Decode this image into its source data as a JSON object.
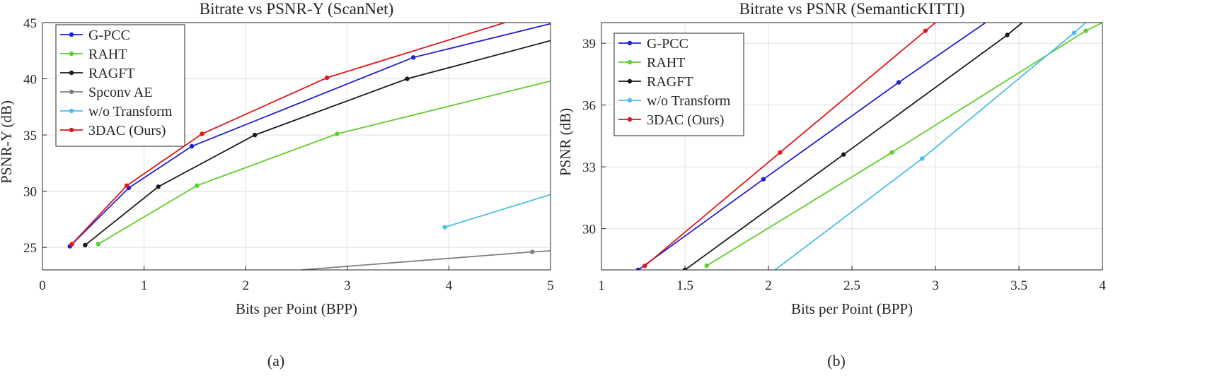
{
  "captions": [
    "(a)",
    "(b)"
  ],
  "chart_data": [
    {
      "type": "line",
      "title": "Bitrate vs PSNR-Y (ScanNet)",
      "xlabel": "Bits per Point (BPP)",
      "ylabel": "PSNR-Y (dB)",
      "xlim": [
        0,
        5
      ],
      "ylim": [
        23,
        45
      ],
      "xticks": [
        0,
        1,
        2,
        3,
        4,
        5
      ],
      "yticks": [
        25,
        30,
        35,
        40,
        45
      ],
      "legend_position": "top-left",
      "series": [
        {
          "name": "G-PCC",
          "color": "#1f1fd6",
          "x": [
            0.27,
            0.85,
            1.47,
            3.65,
            5.0
          ],
          "y": [
            25.1,
            30.3,
            34.0,
            41.9,
            44.9
          ],
          "markers": [
            true,
            true,
            true,
            true,
            false
          ]
        },
        {
          "name": "RAHT",
          "color": "#5fcf2b",
          "x": [
            0.55,
            1.52,
            2.9,
            5.0
          ],
          "y": [
            25.3,
            30.5,
            35.1,
            39.8
          ],
          "markers": [
            true,
            true,
            true,
            false
          ]
        },
        {
          "name": "RAGFT",
          "color": "#1a1a1a",
          "x": [
            0.42,
            1.14,
            2.09,
            3.59,
            5.0
          ],
          "y": [
            25.2,
            30.4,
            35.0,
            40.0,
            43.4
          ],
          "markers": [
            true,
            true,
            true,
            true,
            false
          ]
        },
        {
          "name": "Spconv AE",
          "color": "#808080",
          "x": [
            2.55,
            4.82,
            5.0
          ],
          "y": [
            23.0,
            24.6,
            24.7
          ],
          "markers": [
            false,
            true,
            false
          ]
        },
        {
          "name": "w/o Transform",
          "color": "#4dbde8",
          "x": [
            3.96,
            5.0
          ],
          "y": [
            26.8,
            29.7
          ],
          "markers": [
            true,
            false
          ]
        },
        {
          "name": "3DAC (Ours)",
          "color": "#e0161c",
          "x": [
            0.29,
            0.83,
            1.57,
            2.8,
            4.55
          ],
          "y": [
            25.3,
            30.5,
            35.1,
            40.1,
            45.0
          ],
          "markers": [
            true,
            true,
            true,
            true,
            false
          ]
        }
      ]
    },
    {
      "type": "line",
      "title": "Bitrate vs PSNR (SemanticKITTI)",
      "xlabel": "Bits per Point (BPP)",
      "ylabel": "PSNR (dB)",
      "xlim": [
        1,
        4
      ],
      "ylim": [
        28,
        40
      ],
      "xticks": [
        1,
        1.5,
        2,
        2.5,
        3,
        3.5,
        4
      ],
      "yticks": [
        30,
        33,
        36,
        39
      ],
      "legend_position": "top-left",
      "series": [
        {
          "name": "G-PCC",
          "color": "#1f1fd6",
          "x": [
            1.22,
            1.97,
            2.78,
            3.3
          ],
          "y": [
            28.0,
            32.4,
            37.1,
            40.0
          ],
          "markers": [
            true,
            true,
            true,
            false
          ]
        },
        {
          "name": "RAHT",
          "color": "#5fcf2b",
          "x": [
            1.63,
            2.74,
            3.9,
            4.0
          ],
          "y": [
            28.2,
            33.7,
            39.6,
            40.0
          ],
          "markers": [
            true,
            true,
            true,
            false
          ]
        },
        {
          "name": "RAGFT",
          "color": "#1a1a1a",
          "x": [
            1.5,
            2.45,
            3.43,
            3.52
          ],
          "y": [
            28.0,
            33.6,
            39.4,
            40.0
          ],
          "markers": [
            true,
            true,
            true,
            false
          ]
        },
        {
          "name": "w/o Transform",
          "color": "#4dbde8",
          "x": [
            2.04,
            2.92,
            3.83,
            3.9
          ],
          "y": [
            28.0,
            33.4,
            39.5,
            40.0
          ],
          "markers": [
            false,
            true,
            true,
            false
          ]
        },
        {
          "name": "3DAC (Ours)",
          "color": "#e0161c",
          "x": [
            1.26,
            2.07,
            2.94,
            3.0
          ],
          "y": [
            28.2,
            33.7,
            39.6,
            40.0
          ],
          "markers": [
            true,
            true,
            true,
            false
          ]
        }
      ]
    }
  ]
}
